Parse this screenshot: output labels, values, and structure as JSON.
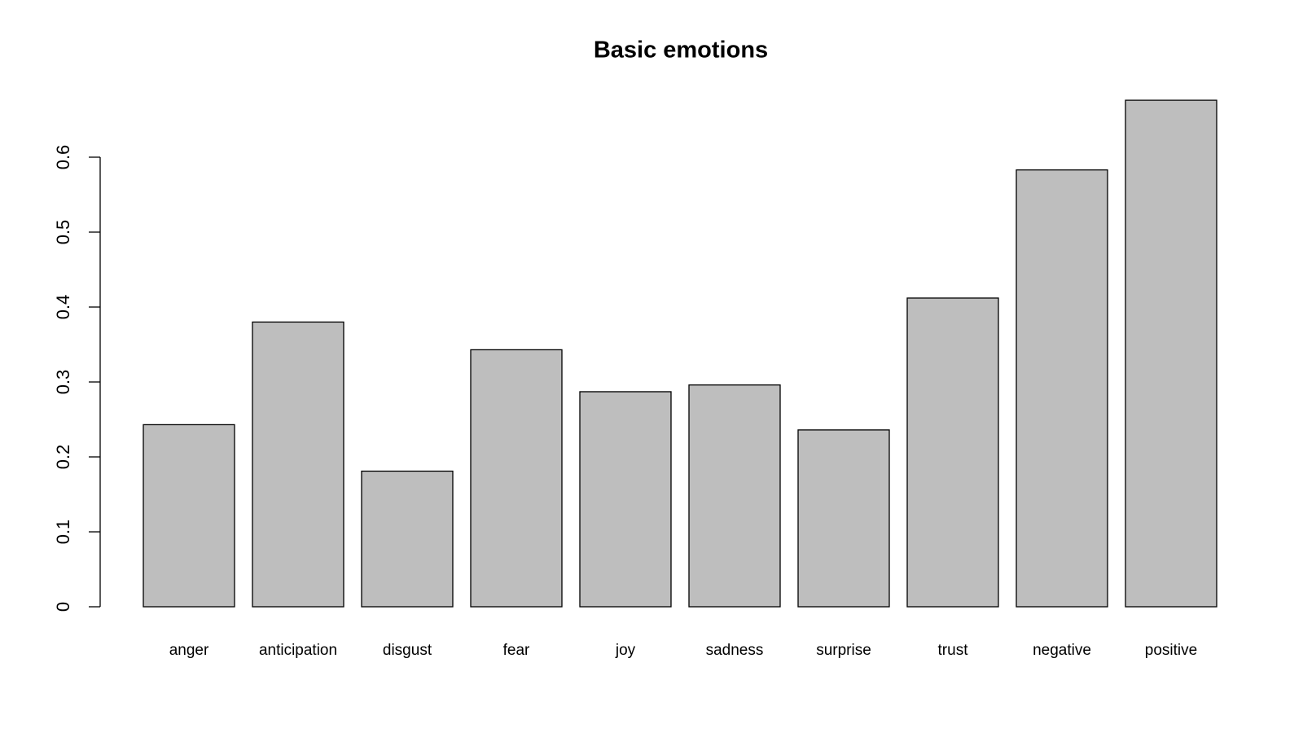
{
  "chart_data": {
    "type": "bar",
    "title": "Basic emotions",
    "categories": [
      "anger",
      "anticipation",
      "disgust",
      "fear",
      "joy",
      "sadness",
      "surprise",
      "trust",
      "negative",
      "positive"
    ],
    "values": [
      0.243,
      0.38,
      0.181,
      0.343,
      0.287,
      0.296,
      0.236,
      0.412,
      0.583,
      0.676
    ],
    "color": "#bebebe",
    "ylim": [
      0,
      0.7
    ],
    "yticks": [
      0.0,
      0.1,
      0.2,
      0.3,
      0.4,
      0.5,
      0.6
    ],
    "grid": false
  }
}
